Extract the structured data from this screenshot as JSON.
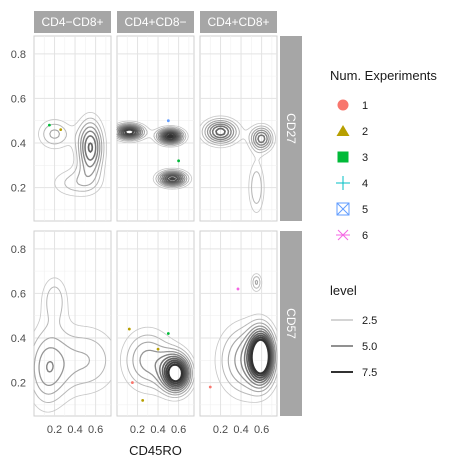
{
  "chart_data": {
    "type": "contour",
    "xlabel": "CD45RO",
    "ylabel": "",
    "x_ticks": [
      0.2,
      0.4,
      0.6
    ],
    "x_tick_labels": [
      "0.2",
      "0.4",
      "0.6"
    ],
    "x_tick_strings": [
      "0.2",
      "0.4",
      "0.6",
      "0.2",
      "0.4",
      "0.6",
      "0.2",
      "0.4",
      "0.6"
    ],
    "y_ticks": [
      0.2,
      0.4,
      0.6,
      0.8
    ],
    "y_tick_labels": [
      "0.2",
      "0.4",
      "0.6",
      "0.8"
    ],
    "xlim": [
      0.0,
      0.75
    ],
    "ylim": [
      0.05,
      0.88
    ],
    "col_facets": [
      "CD4−CD8+",
      "CD4+CD8−",
      "CD4+CD8+"
    ],
    "row_facets": [
      "CD27",
      "CD57"
    ],
    "legends": {
      "shape": {
        "title": "Num. Experiments",
        "entries": [
          {
            "label": "1",
            "shape": "circle",
            "color": "#F8766D"
          },
          {
            "label": "2",
            "shape": "triangle",
            "color": "#B79F00"
          },
          {
            "label": "3",
            "shape": "square",
            "color": "#00BA38"
          },
          {
            "label": "4",
            "shape": "plus",
            "color": "#00BFC4"
          },
          {
            "label": "5",
            "shape": "boxed-x",
            "color": "#619CFF"
          },
          {
            "label": "6",
            "shape": "asterisk",
            "color": "#F564E3"
          }
        ]
      },
      "level": {
        "title": "level",
        "entries": [
          {
            "label": "2.5",
            "value": 2.5
          },
          {
            "label": "5.0",
            "value": 5.0
          },
          {
            "label": "7.5",
            "value": 7.5
          }
        ]
      }
    },
    "panels": [
      {
        "row": "CD27",
        "col": "CD4−CD8+",
        "peaks": [
          {
            "x": 0.55,
            "y": 0.38,
            "sx": 0.09,
            "sy": 0.09,
            "h": 5.5
          },
          {
            "x": 0.2,
            "y": 0.44,
            "sx": 0.12,
            "sy": 0.05,
            "h": 2.8
          },
          {
            "x": 0.4,
            "y": 0.22,
            "sx": 0.18,
            "sy": 0.05,
            "h": 2.2
          }
        ],
        "points": [
          {
            "x": 0.15,
            "y": 0.48,
            "shape": "3"
          },
          {
            "x": 0.26,
            "y": 0.46,
            "shape": "2"
          }
        ]
      },
      {
        "row": "CD27",
        "col": "CD4+CD8−",
        "peaks": [
          {
            "x": 0.12,
            "y": 0.45,
            "sx": 0.1,
            "sy": 0.025,
            "h": 7.5
          },
          {
            "x": 0.52,
            "y": 0.43,
            "sx": 0.09,
            "sy": 0.025,
            "h": 7.8
          },
          {
            "x": 0.54,
            "y": 0.24,
            "sx": 0.1,
            "sy": 0.025,
            "h": 7.0
          }
        ],
        "points": [
          {
            "x": 0.5,
            "y": 0.5,
            "shape": "5"
          },
          {
            "x": 0.6,
            "y": 0.32,
            "shape": "3"
          }
        ]
      },
      {
        "row": "CD27",
        "col": "CD4+CD8+",
        "peaks": [
          {
            "x": 0.2,
            "y": 0.45,
            "sx": 0.12,
            "sy": 0.04,
            "h": 5.8
          },
          {
            "x": 0.6,
            "y": 0.42,
            "sx": 0.08,
            "sy": 0.04,
            "h": 5.0
          },
          {
            "x": 0.55,
            "y": 0.2,
            "sx": 0.06,
            "sy": 0.09,
            "h": 2.6
          }
        ],
        "points": []
      },
      {
        "row": "CD57",
        "col": "CD4−CD8+",
        "peaks": [
          {
            "x": 0.12,
            "y": 0.26,
            "sx": 0.14,
            "sy": 0.13,
            "h": 3.2
          },
          {
            "x": 0.5,
            "y": 0.3,
            "sx": 0.25,
            "sy": 0.12,
            "h": 2.6
          },
          {
            "x": 0.2,
            "y": 0.58,
            "sx": 0.1,
            "sy": 0.08,
            "h": 2.2
          }
        ],
        "points": []
      },
      {
        "row": "CD57",
        "col": "CD4+CD8−",
        "peaks": [
          {
            "x": 0.58,
            "y": 0.24,
            "sx": 0.1,
            "sy": 0.06,
            "h": 8.0
          },
          {
            "x": 0.3,
            "y": 0.3,
            "sx": 0.18,
            "sy": 0.1,
            "h": 3.6
          }
        ],
        "points": [
          {
            "x": 0.12,
            "y": 0.44,
            "shape": "2"
          },
          {
            "x": 0.5,
            "y": 0.42,
            "shape": "3"
          },
          {
            "x": 0.15,
            "y": 0.2,
            "shape": "1"
          },
          {
            "x": 0.25,
            "y": 0.12,
            "shape": "2"
          },
          {
            "x": 0.4,
            "y": 0.35,
            "shape": "2"
          }
        ]
      },
      {
        "row": "CD57",
        "col": "CD4+CD8+",
        "peaks": [
          {
            "x": 0.6,
            "y": 0.32,
            "sx": 0.08,
            "sy": 0.08,
            "h": 8.0
          },
          {
            "x": 0.45,
            "y": 0.3,
            "sx": 0.2,
            "sy": 0.12,
            "h": 3.8
          },
          {
            "x": 0.55,
            "y": 0.65,
            "sx": 0.04,
            "sy": 0.03,
            "h": 2.7
          }
        ],
        "points": [
          {
            "x": 0.1,
            "y": 0.18,
            "shape": "1"
          },
          {
            "x": 0.37,
            "y": 0.62,
            "shape": "6"
          }
        ]
      }
    ]
  }
}
